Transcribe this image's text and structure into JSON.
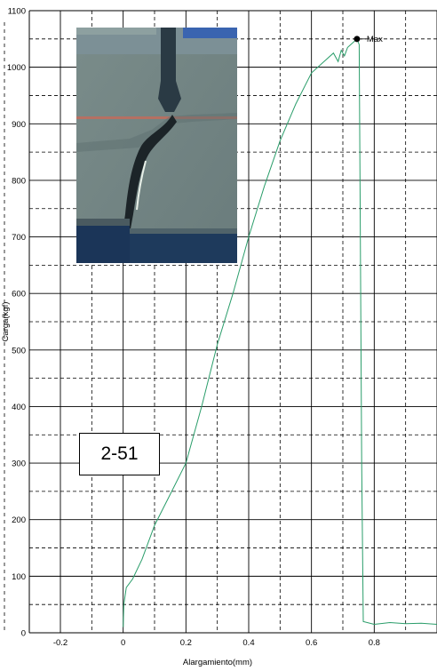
{
  "chart_data": {
    "type": "line",
    "title": "",
    "xlabel": "Alargamiento(mm)",
    "ylabel": "Carga(kgf)",
    "xlim": [
      -0.2,
      1.0
    ],
    "ylim": [
      0,
      1100
    ],
    "x_ticks": [
      -0.2,
      0,
      0.2,
      0.4,
      0.6,
      0.8
    ],
    "x_tick_labels": [
      "-0.2",
      "0",
      "0.2",
      "0.4",
      "0.6",
      "0.8"
    ],
    "y_ticks": [
      0,
      100,
      200,
      300,
      400,
      500,
      600,
      700,
      800,
      900,
      1000,
      1100
    ],
    "y_tick_labels": [
      "0",
      "100",
      "200",
      "300",
      "400",
      "500",
      "600",
      "700",
      "800",
      "900",
      "1000",
      "1100"
    ],
    "grid": true,
    "series": [
      {
        "color": "#2a9d6a",
        "x": [
          0.0,
          0.002,
          0.01,
          0.03,
          0.06,
          0.1,
          0.15,
          0.2,
          0.25,
          0.3,
          0.35,
          0.4,
          0.45,
          0.5,
          0.55,
          0.6,
          0.64,
          0.67,
          0.685,
          0.695,
          0.705,
          0.715,
          0.725,
          0.735,
          0.745,
          0.752,
          0.755,
          0.76,
          0.765,
          0.8,
          0.85,
          0.9,
          0.95,
          1.0
        ],
        "y": [
          10,
          50,
          80,
          95,
          130,
          190,
          245,
          300,
          400,
          510,
          600,
          700,
          790,
          870,
          935,
          990,
          1010,
          1025,
          1010,
          1030,
          1020,
          1035,
          1040,
          1045,
          1050,
          1040,
          780,
          300,
          20,
          15,
          18,
          16,
          17,
          15
        ]
      }
    ],
    "annotations": [
      {
        "text": "Max",
        "x": 0.745,
        "y": 1050
      },
      {
        "text": "2-51"
      }
    ]
  }
}
